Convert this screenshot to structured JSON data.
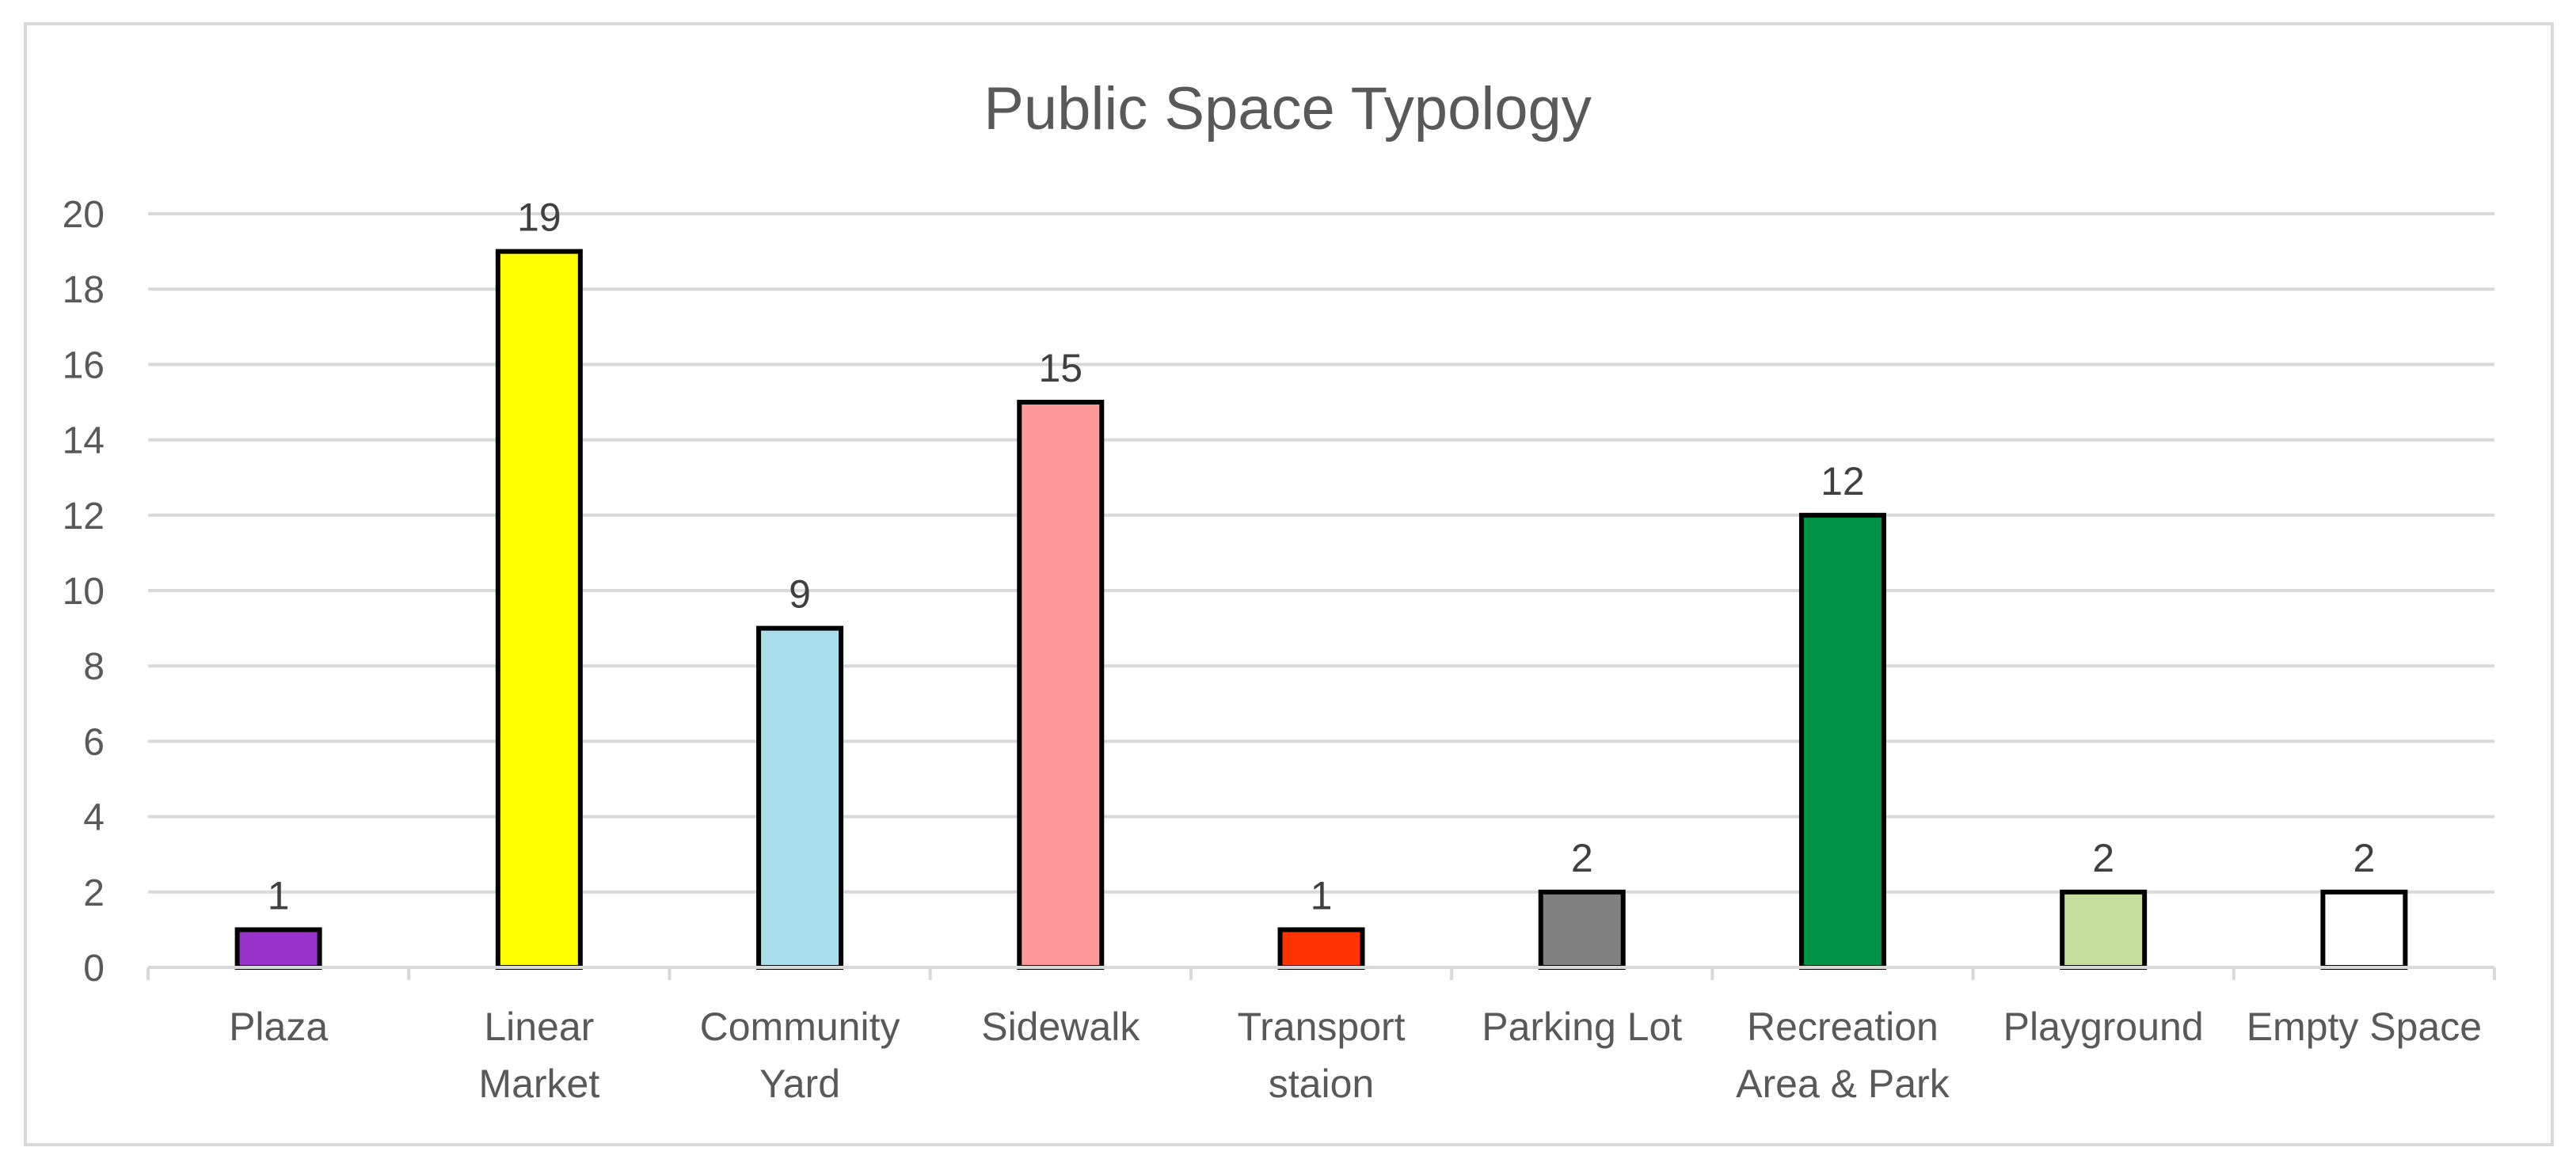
{
  "chart_data": {
    "type": "bar",
    "title": "Public Space Typology",
    "xlabel": "",
    "ylabel": "",
    "ylim": [
      0,
      20
    ],
    "y_ticks": [
      "0",
      "2",
      "4",
      "6",
      "8",
      "10",
      "12",
      "14",
      "16",
      "18",
      "20"
    ],
    "grid": true,
    "legend": "none",
    "categories": [
      [
        "Plaza"
      ],
      [
        "Linear",
        "Market"
      ],
      [
        "Community",
        "Yard"
      ],
      [
        "Sidewalk"
      ],
      [
        "Transport",
        "staion"
      ],
      [
        "Parking Lot"
      ],
      [
        "Recreation",
        "Area & Park"
      ],
      [
        "Playground"
      ],
      [
        "Empty Space"
      ]
    ],
    "values": [
      1,
      19,
      9,
      15,
      1,
      2,
      12,
      2,
      2
    ],
    "data_labels": [
      "1",
      "19",
      "9",
      "15",
      "1",
      "2",
      "12",
      "2",
      "2"
    ],
    "colors": [
      "#9933CC",
      "#FFFF00",
      "#A8DDEB",
      "#FF9999",
      "#FF3300",
      "#808080",
      "#009245",
      "#C5DE9B",
      "#FFFFFF"
    ],
    "bar_outline_color": "#000000",
    "gridline_color": "#D9D9D9",
    "text_color": "#595959"
  }
}
